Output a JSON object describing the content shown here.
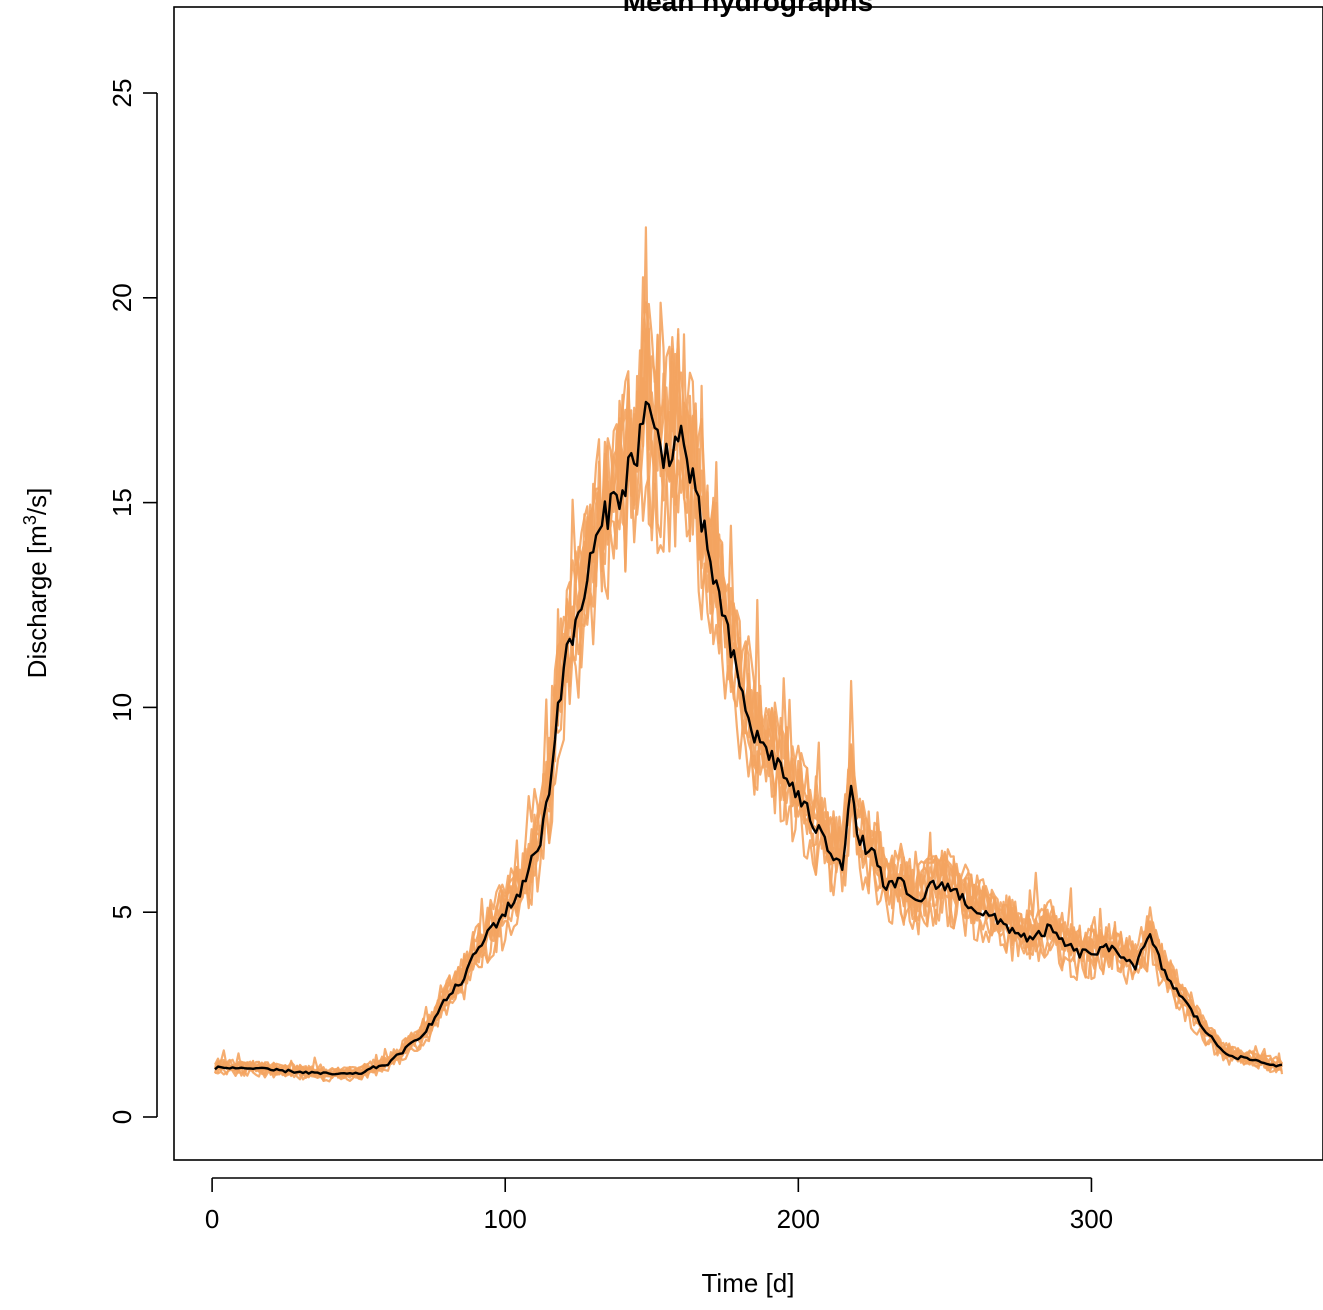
{
  "chart_data": {
    "type": "line",
    "title": "Mean hydrographs",
    "xlabel": "Time [d]",
    "ylabel_main": "Discharge [m",
    "ylabel_sup": "3",
    "ylabel_end": "/s]",
    "xlim": [
      -13,
      379
    ],
    "ylim": [
      -1.05,
      27.1
    ],
    "xticks": [
      0,
      100,
      200,
      300
    ],
    "yticks": [
      0,
      5,
      10,
      15,
      20,
      25
    ],
    "grid": false,
    "legend": "none",
    "ensemble_color": "#F4A460",
    "mean_color": "#000000",
    "ensemble_members": 10,
    "mean_series": {
      "x": [
        1,
        10,
        20,
        30,
        40,
        50,
        55,
        60,
        65,
        70,
        75,
        80,
        85,
        90,
        95,
        100,
        105,
        110,
        112,
        115,
        118,
        120,
        125,
        130,
        135,
        140,
        145,
        148,
        150,
        155,
        160,
        163,
        165,
        170,
        175,
        180,
        185,
        190,
        195,
        200,
        205,
        210,
        215,
        218,
        220,
        225,
        230,
        235,
        240,
        245,
        250,
        255,
        260,
        265,
        270,
        275,
        280,
        285,
        290,
        295,
        300,
        305,
        310,
        315,
        320,
        325,
        330,
        335,
        340,
        345,
        350,
        355,
        360,
        365
      ],
      "y": [
        1.2,
        1.2,
        1.15,
        1.1,
        1.05,
        1.05,
        1.2,
        1.3,
        1.6,
        1.9,
        2.3,
        2.9,
        3.3,
        4.0,
        4.6,
        5.0,
        5.5,
        6.4,
        6.8,
        8.0,
        10.0,
        11.0,
        12.2,
        13.8,
        14.8,
        15.4,
        16.3,
        17.4,
        16.8,
        16.2,
        16.6,
        15.8,
        15.0,
        13.6,
        12.0,
        10.5,
        9.3,
        8.9,
        8.4,
        7.8,
        7.2,
        6.6,
        6.2,
        8.1,
        6.8,
        6.5,
        5.6,
        5.7,
        5.2,
        5.6,
        5.7,
        5.4,
        5.1,
        4.9,
        4.7,
        4.5,
        4.3,
        4.6,
        4.3,
        4.0,
        4.0,
        4.1,
        4.0,
        3.7,
        4.4,
        3.5,
        3.0,
        2.5,
        2.0,
        1.6,
        1.45,
        1.4,
        1.3,
        1.25
      ]
    }
  }
}
